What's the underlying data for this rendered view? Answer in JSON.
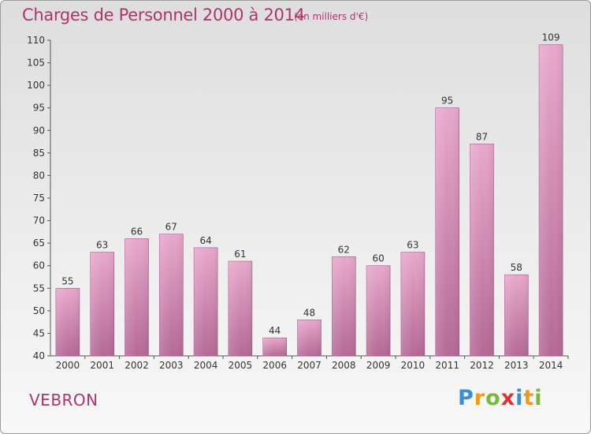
{
  "header": {
    "title": "Charges de Personnel 2000 à 2014",
    "subtitle": "(en milliers d'€)"
  },
  "commune": "VEBRON",
  "logo": {
    "text": "Proxiti",
    "letters": [
      "P",
      "r",
      "o",
      "x",
      "i",
      "t",
      "i"
    ],
    "colors": [
      "#3a8fd4",
      "#f29a17",
      "#78b83a",
      "#e0312f",
      "#3a8fd4",
      "#f29a17",
      "#78b83a"
    ]
  },
  "chart_data": {
    "type": "bar",
    "categories": [
      "2000",
      "2001",
      "2002",
      "2003",
      "2004",
      "2005",
      "2006",
      "2007",
      "2008",
      "2009",
      "2010",
      "2011",
      "2012",
      "2013",
      "2014"
    ],
    "values": [
      55,
      63,
      66,
      67,
      64,
      61,
      44,
      48,
      62,
      60,
      63,
      95,
      87,
      58,
      109
    ],
    "title": "Charges de Personnel 2000 à 2014",
    "subtitle": "(en milliers d'€)",
    "ylim": [
      40,
      110
    ],
    "yticks": [
      40,
      45,
      50,
      55,
      60,
      65,
      70,
      75,
      80,
      85,
      90,
      95,
      100,
      105,
      110
    ],
    "grid": false,
    "bar_color": "#c96a9d",
    "bar_color_light": "#e8a8cc"
  }
}
